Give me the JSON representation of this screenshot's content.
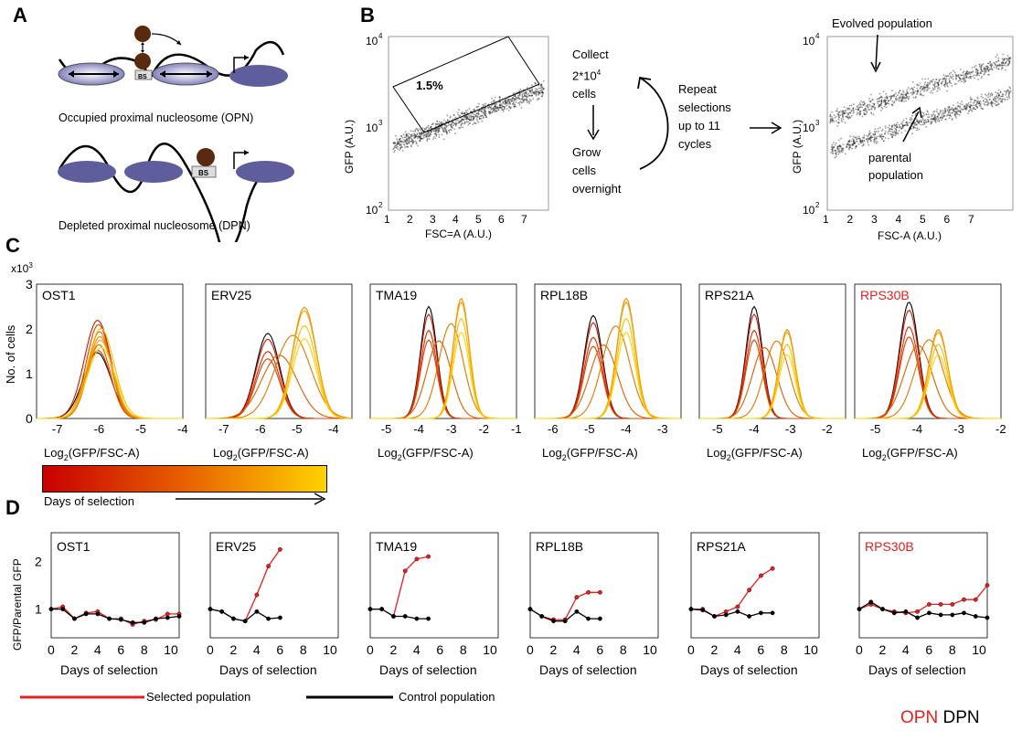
{
  "panels": {
    "a": "A",
    "b": "B",
    "c": "C",
    "d": "D"
  },
  "panel_a": {
    "opn_caption": "Occupied proximal nucleosome (OPN)",
    "dpn_caption": "Depleted proximal nucleosome (DPN)",
    "bs_label": "BS"
  },
  "panel_b": {
    "gate_label": "1.5%",
    "y_label": "GFP (A.U.)",
    "x_label_left": "FSC=A (A.U.)",
    "x_label_right": "FSC-A (A.U.)",
    "x_ticks": [
      "1",
      "2",
      "3",
      "4",
      "5",
      "6",
      "7"
    ],
    "y_ticks": [
      "10",
      "10",
      "10"
    ],
    "y_exps": [
      "4",
      "3",
      "2"
    ],
    "collect": [
      "Collect",
      "2*10",
      "cells"
    ],
    "collect_exp": "4",
    "grow": [
      "Grow",
      "cells",
      "overnight"
    ],
    "repeat": [
      "Repeat",
      "selections",
      "up to 11",
      "cycles"
    ],
    "evolved": "Evolved population",
    "parental": [
      "parental",
      "population"
    ]
  },
  "panel_c": {
    "y_label": "No. of  cells",
    "y_mult": "x10",
    "y_mult_exp": "3",
    "y_ticks": [
      "3",
      "2",
      "1",
      "0"
    ],
    "x_label_base": "Log",
    "x_label_sub": "2",
    "x_label_rest": "(GFP/FSC-A)",
    "colorbar_label": "Days of selection",
    "colors": {
      "start": "#c80000",
      "end": "#ffd200"
    }
  },
  "panel_d": {
    "y_label": "GFP/Parental GFP",
    "y_ticks": [
      "2",
      "1"
    ],
    "x_label": "Days of selection",
    "x_ticks": [
      "0",
      "2",
      "4",
      "6",
      "8",
      "10"
    ],
    "legend_selected": "Selected population",
    "legend_control": "Control  population",
    "colors": {
      "selected": "#e52020",
      "control": "#000000"
    }
  },
  "footer": {
    "opn": "OPN",
    "dpn": "DPN",
    "opn_color": "#e52020"
  },
  "chart_data": [
    {
      "type": "line",
      "title": "OST1",
      "xlabel": "Log2(GFP/FSC-A)",
      "ylabel": "No. of cells",
      "xlim": [
        -7.5,
        -4
      ],
      "ylim": [
        0,
        3
      ],
      "x_ticks": [
        "-7",
        "-6",
        "-5",
        "-4"
      ],
      "series": [
        {
          "center": -6.0,
          "spread": 0.3,
          "peak": 2.1
        }
      ]
    },
    {
      "type": "line",
      "title": "ERV25",
      "xlabel": "Log2(GFP/FSC-A)",
      "ylabel": "No. of cells",
      "xlim": [
        -7.5,
        -3.5
      ],
      "ylim": [
        0,
        3
      ],
      "x_ticks": [
        "-7",
        "-6",
        "-5",
        "-4"
      ],
      "series": [
        {
          "center": -5.8,
          "spread": 0.35,
          "peak": 1.9
        },
        {
          "center": -4.8,
          "spread": 0.3,
          "peak": 2.5
        }
      ]
    },
    {
      "type": "line",
      "title": "TMA19",
      "xlabel": "Log2(GFP/FSC-A)",
      "ylabel": "No. of cells",
      "xlim": [
        -5.5,
        -1
      ],
      "ylim": [
        0,
        3
      ],
      "x_ticks": [
        "-5",
        "-4",
        "-3",
        "-2",
        "-1"
      ],
      "series": [
        {
          "center": -3.7,
          "spread": 0.25,
          "peak": 2.5
        },
        {
          "center": -2.7,
          "spread": 0.25,
          "peak": 2.7
        }
      ]
    },
    {
      "type": "line",
      "title": "RPL18B",
      "xlabel": "Log2(GFP/FSC-A)",
      "ylabel": "No. of cells",
      "xlim": [
        -6.5,
        -2.5
      ],
      "ylim": [
        0,
        3
      ],
      "x_ticks": [
        "-6",
        "-5",
        "-4",
        "-3"
      ],
      "series": [
        {
          "center": -4.9,
          "spread": 0.25,
          "peak": 2.3
        },
        {
          "center": -4.0,
          "spread": 0.25,
          "peak": 2.7
        }
      ]
    },
    {
      "type": "line",
      "title": "RPS21A",
      "xlabel": "Log2(GFP/FSC-A)",
      "ylabel": "No. of cells",
      "xlim": [
        -5.5,
        -1.5
      ],
      "ylim": [
        0,
        3
      ],
      "x_ticks": [
        "-5",
        "-4",
        "-3",
        "-2"
      ],
      "series": [
        {
          "center": -4.0,
          "spread": 0.2,
          "peak": 2.5
        },
        {
          "center": -3.1,
          "spread": 0.25,
          "peak": 2.0
        }
      ]
    },
    {
      "type": "line",
      "title": "RPS30B",
      "xlabel": "Log2(GFP/FSC-A)",
      "ylabel": "No. of cells",
      "xlim": [
        -5.5,
        -2
      ],
      "ylim": [
        0,
        3
      ],
      "x_ticks": [
        "-5",
        "-4",
        "-3",
        "-2"
      ],
      "series": [
        {
          "center": -4.2,
          "spread": 0.2,
          "peak": 2.6
        },
        {
          "center": -3.5,
          "spread": 0.25,
          "peak": 2.0
        }
      ]
    },
    {
      "type": "line",
      "title": "OST1",
      "xlabel": "Days of selection",
      "ylabel": "GFP/Parental GFP",
      "xlim": [
        0,
        11
      ],
      "ylim": [
        0.4,
        2.6
      ],
      "x": [
        0,
        1,
        2,
        3,
        4,
        5,
        6,
        7,
        8,
        9,
        10,
        11
      ],
      "series": [
        {
          "name": "Selected population",
          "values": [
            1.0,
            1.05,
            0.8,
            0.92,
            0.95,
            0.8,
            0.8,
            0.68,
            0.75,
            0.78,
            0.9,
            0.9
          ]
        },
        {
          "name": "Control population",
          "values": [
            1.0,
            1.0,
            0.8,
            0.9,
            0.9,
            0.8,
            0.78,
            0.72,
            0.72,
            0.8,
            0.82,
            0.85
          ]
        }
      ]
    },
    {
      "type": "line",
      "title": "ERV25",
      "xlabel": "Days of selection",
      "ylabel": "GFP/Parental GFP",
      "xlim": [
        0,
        11
      ],
      "ylim": [
        0.4,
        2.6
      ],
      "x": [
        0,
        1,
        2,
        3,
        4,
        5,
        6
      ],
      "series": [
        {
          "name": "Selected population",
          "values": [
            1.0,
            0.95,
            0.8,
            0.75,
            1.3,
            1.9,
            2.25
          ]
        },
        {
          "name": "Control population",
          "values": [
            1.0,
            0.95,
            0.8,
            0.75,
            0.95,
            0.8,
            0.82
          ]
        }
      ]
    },
    {
      "type": "line",
      "title": "TMA19",
      "xlabel": "Days of selection",
      "ylabel": "GFP/Parental GFP",
      "xlim": [
        0,
        11
      ],
      "ylim": [
        0.4,
        2.6
      ],
      "x": [
        0,
        1,
        2,
        3,
        4,
        5
      ],
      "series": [
        {
          "name": "Selected population",
          "values": [
            1.0,
            1.0,
            0.85,
            1.8,
            2.05,
            2.1
          ]
        },
        {
          "name": "Control population",
          "values": [
            1.0,
            1.0,
            0.85,
            0.85,
            0.8,
            0.8
          ]
        }
      ]
    },
    {
      "type": "line",
      "title": "RPL18B",
      "xlabel": "Days of selection",
      "ylabel": "GFP/Parental GFP",
      "xlim": [
        0,
        11
      ],
      "ylim": [
        0.4,
        2.6
      ],
      "x": [
        0,
        1,
        2,
        3,
        4,
        5,
        6
      ],
      "series": [
        {
          "name": "Selected population",
          "values": [
            1.0,
            0.85,
            0.78,
            0.78,
            1.25,
            1.35,
            1.35
          ]
        },
        {
          "name": "Control population",
          "values": [
            1.0,
            0.85,
            0.75,
            0.75,
            0.95,
            0.8,
            0.8
          ]
        }
      ]
    },
    {
      "type": "line",
      "title": "RPS21A",
      "xlabel": "Days of selection",
      "ylabel": "GFP/Parental GFP",
      "xlim": [
        0,
        11
      ],
      "ylim": [
        0.4,
        2.6
      ],
      "x": [
        0,
        1,
        2,
        3,
        4,
        5,
        6,
        7
      ],
      "series": [
        {
          "name": "Selected population",
          "values": [
            1.0,
            1.0,
            0.85,
            0.95,
            1.05,
            1.4,
            1.7,
            1.85
          ]
        },
        {
          "name": "Control population",
          "values": [
            1.0,
            0.98,
            0.85,
            0.88,
            0.95,
            0.85,
            0.92,
            0.92
          ]
        }
      ]
    },
    {
      "type": "line",
      "title": "RPS30B",
      "xlabel": "Days of selection",
      "ylabel": "GFP/Parental GFP",
      "xlim": [
        0,
        11
      ],
      "ylim": [
        0.4,
        2.6
      ],
      "x": [
        0,
        1,
        2,
        3,
        4,
        5,
        6,
        7,
        8,
        9,
        10,
        11
      ],
      "series": [
        {
          "name": "Selected population",
          "values": [
            1.0,
            1.1,
            1.0,
            0.95,
            0.92,
            0.95,
            1.1,
            1.1,
            1.1,
            1.2,
            1.2,
            1.5
          ]
        },
        {
          "name": "Control population",
          "values": [
            1.0,
            1.15,
            1.0,
            0.92,
            0.95,
            0.82,
            0.92,
            0.88,
            0.88,
            0.92,
            0.85,
            0.82
          ]
        }
      ]
    }
  ]
}
